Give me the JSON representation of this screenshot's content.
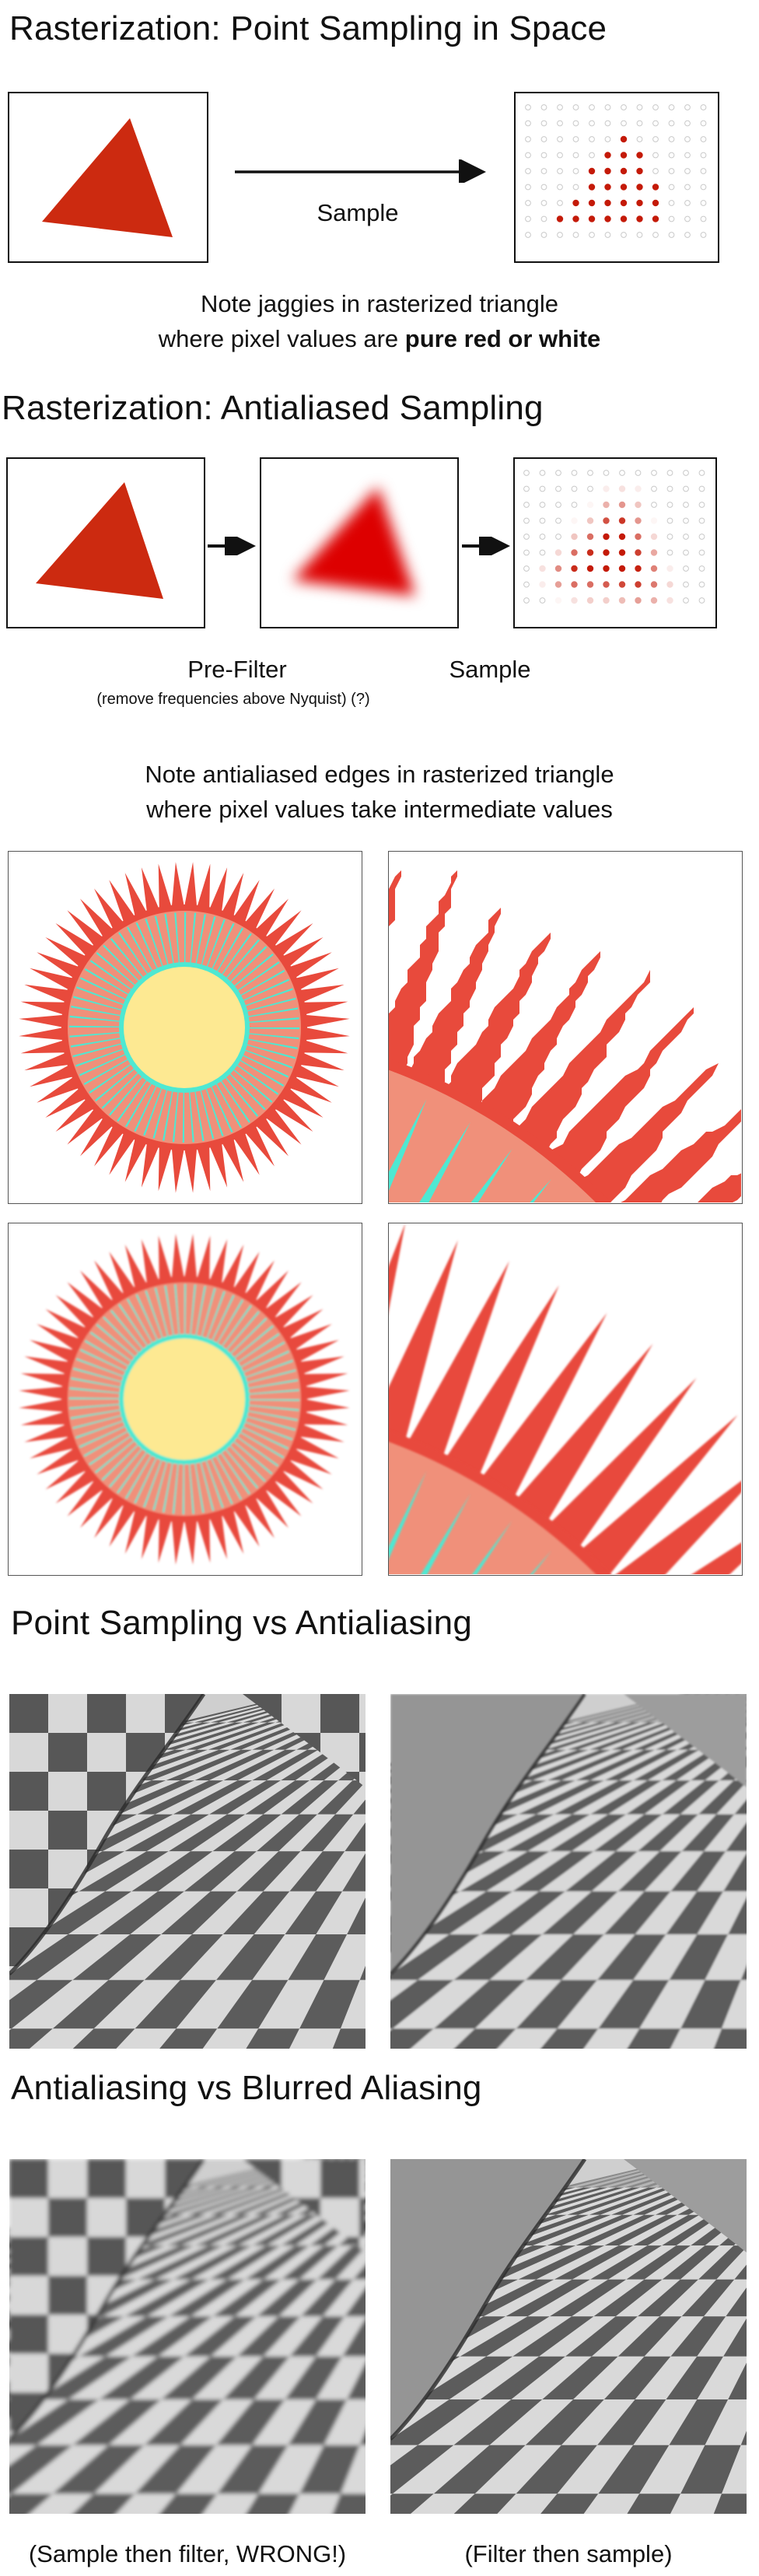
{
  "sections": [
    {
      "title": "Rasterization: Point Sampling in Space"
    },
    {
      "title": "Rasterization: Antialiased Sampling"
    },
    {
      "title": "Point Sampling vs Antialiasing"
    },
    {
      "title": "Antialiasing vs Blurred Aliasing"
    }
  ],
  "point_sampling": {
    "arrow_label": "Sample",
    "caption_line1": "Note jaggies in rasterized triangle",
    "caption_line2_prefix": "where pixel values are ",
    "caption_line2_bold": "pure red or white"
  },
  "antialiased_sampling": {
    "prefilter_label": "Pre-Filter",
    "prefilter_note": "(remove frequencies above Nyquist) (?)",
    "sample_label": "Sample",
    "caption_line1": "Note antialiased edges in rasterized triangle",
    "caption_line2": "where pixel values take intermediate values"
  },
  "blurred_aliasing": {
    "left_caption": "(Sample then filter, WRONG!)",
    "right_caption": "(Filter then sample)"
  },
  "colors": {
    "triangle_red": "#cc2a10",
    "prefilter_red": "#dd0000",
    "sunburst_spike": "#e84a3c",
    "sunburst_ring": "#f0907a",
    "sunburst_ray": "#4ee8d2",
    "sunburst_core": "#fde992",
    "checker_light": "#dcdcdc",
    "checker_dark": "#5a5a5a"
  }
}
